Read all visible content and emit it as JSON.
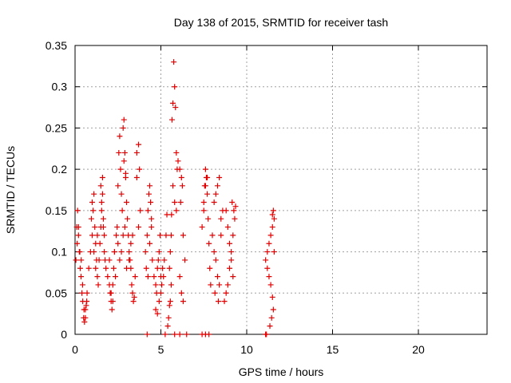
{
  "chart_data": {
    "type": "scatter",
    "title": "Day 138 of 2015, SRMTID for receiver tash",
    "xlabel": "GPS time / hours",
    "ylabel": "SRMTID / TECUs",
    "xlim": [
      0,
      24
    ],
    "ylim": [
      0,
      0.35
    ],
    "x_ticks": [
      0,
      5,
      10,
      15,
      20
    ],
    "x_tick_labels": [
      "0",
      "5",
      "10",
      "15",
      "20"
    ],
    "y_ticks": [
      0,
      0.05,
      0.1,
      0.15,
      0.2,
      0.25,
      0.3,
      0.35
    ],
    "y_tick_labels": [
      "0",
      "0.05",
      "0.1",
      "0.15",
      "0.2",
      "0.25",
      "0.3",
      "0.35"
    ],
    "grid": true,
    "marker": "+",
    "series_color": "#e00000",
    "grid_color": "#a0a0a0",
    "series": [
      {
        "name": "SRMTID",
        "x": [
          0.05,
          0.1,
          0.15,
          0.2,
          0.25,
          0.3,
          0.35,
          0.4,
          0.45,
          0.5,
          0.55,
          0.6,
          0.65,
          0.7,
          0.12,
          0.2,
          0.28,
          0.36,
          0.44,
          0.52,
          0.6,
          0.68,
          0.8,
          0.9,
          1.0,
          1.05,
          1.1,
          1.15,
          1.2,
          1.25,
          1.3,
          1.35,
          1.4,
          0.95,
          1.0,
          1.1,
          1.2,
          1.3,
          1.45,
          1.5,
          1.55,
          1.6,
          1.65,
          1.7,
          1.75,
          1.8,
          1.5,
          1.6,
          1.7,
          1.55,
          1.65,
          1.9,
          2.0,
          2.05,
          2.1,
          2.15,
          2.2,
          2.25,
          2.3,
          2.35,
          2.4,
          2.0,
          2.1,
          2.2,
          2.3,
          2.45,
          2.5,
          2.55,
          2.6,
          2.65,
          2.7,
          2.75,
          2.8,
          2.85,
          2.9,
          2.95,
          3.0,
          3.05,
          2.5,
          2.6,
          2.7,
          2.8,
          2.9,
          3.0,
          2.85,
          2.95,
          3.1,
          3.15,
          3.2,
          3.25,
          3.3,
          3.35,
          3.4,
          3.45,
          3.5,
          3.15,
          3.25,
          3.35,
          3.6,
          3.7,
          3.8,
          3.6,
          3.7,
          3.75,
          4.1,
          4.2,
          4.25,
          4.3,
          4.35,
          4.4,
          4.45,
          4.5,
          4.15,
          4.25,
          4.35,
          4.45,
          4.6,
          4.7,
          4.75,
          4.8,
          4.85,
          4.9,
          4.95,
          5.0,
          5.05,
          5.1,
          5.15,
          5.2,
          4.7,
          4.8,
          4.9,
          5.0,
          5.3,
          5.35,
          5.4,
          5.45,
          5.5,
          5.55,
          5.6,
          5.5,
          5.55,
          5.6,
          5.62,
          5.65,
          5.7,
          5.75,
          5.8,
          5.85,
          5.9,
          5.95,
          5.7,
          5.8,
          5.9,
          6.0,
          6.1,
          6.2,
          6.3,
          6.4,
          6.1,
          6.2,
          6.3,
          6.15,
          6.25,
          7.4,
          7.5,
          7.55,
          7.6,
          7.65,
          7.7,
          7.75,
          7.8,
          7.85,
          7.9,
          7.5,
          7.6,
          7.7,
          8.0,
          8.1,
          8.2,
          8.3,
          8.4,
          8.5,
          8.6,
          8.1,
          8.2,
          8.3,
          8.4,
          8.5,
          8.15,
          8.35,
          8.7,
          8.8,
          8.9,
          9.0,
          9.1,
          9.2,
          9.3,
          8.8,
          8.9,
          9.0,
          9.1,
          9.2,
          9.15,
          9.25,
          9.35,
          11.1,
          11.2,
          11.3,
          11.4,
          11.5,
          11.6,
          11.2,
          11.3,
          11.4,
          11.5,
          11.55,
          11.45,
          11.35,
          11.6,
          11.5,
          11.55,
          4.2,
          5.25,
          5.8,
          6.1,
          6.5,
          7.4,
          7.6,
          7.8,
          11.1,
          11.15
        ],
        "y": [
          0.09,
          0.13,
          0.15,
          0.12,
          0.1,
          0.08,
          0.07,
          0.05,
          0.04,
          0.02,
          0.015,
          0.03,
          0.035,
          0.05,
          0.11,
          0.13,
          0.1,
          0.09,
          0.06,
          0.03,
          0.02,
          0.04,
          0.08,
          0.1,
          0.12,
          0.15,
          0.17,
          0.13,
          0.11,
          0.09,
          0.07,
          0.06,
          0.09,
          0.14,
          0.16,
          0.1,
          0.08,
          0.12,
          0.11,
          0.13,
          0.16,
          0.19,
          0.14,
          0.12,
          0.09,
          0.08,
          0.18,
          0.17,
          0.1,
          0.15,
          0.13,
          0.07,
          0.06,
          0.05,
          0.04,
          0.03,
          0.06,
          0.08,
          0.1,
          0.07,
          0.12,
          0.09,
          0.05,
          0.04,
          0.1,
          0.13,
          0.18,
          0.22,
          0.24,
          0.2,
          0.17,
          0.15,
          0.25,
          0.26,
          0.22,
          0.19,
          0.16,
          0.14,
          0.11,
          0.09,
          0.1,
          0.12,
          0.13,
          0.08,
          0.21,
          0.195,
          0.12,
          0.1,
          0.09,
          0.08,
          0.06,
          0.05,
          0.04,
          0.045,
          0.07,
          0.09,
          0.11,
          0.12,
          0.22,
          0.23,
          0.15,
          0.19,
          0.13,
          0.2,
          0.1,
          0.12,
          0.15,
          0.17,
          0.18,
          0.16,
          0.14,
          0.09,
          0.08,
          0.07,
          0.11,
          0.13,
          0.07,
          0.06,
          0.05,
          0.08,
          0.09,
          0.1,
          0.12,
          0.07,
          0.06,
          0.08,
          0.07,
          0.09,
          0.03,
          0.025,
          0.04,
          0.05,
          0.12,
          0.145,
          0.01,
          0.02,
          0.035,
          0.04,
          0.06,
          0.08,
          0.1,
          0.12,
          0.145,
          0.26,
          0.28,
          0.33,
          0.3,
          0.275,
          0.22,
          0.2,
          0.18,
          0.16,
          0.15,
          0.21,
          0.2,
          0.19,
          0.12,
          0.09,
          0.07,
          0.05,
          0.04,
          0.16,
          0.18,
          0.13,
          0.15,
          0.18,
          0.2,
          0.19,
          0.17,
          0.14,
          0.11,
          0.08,
          0.06,
          0.16,
          0.18,
          0.19,
          0.12,
          0.1,
          0.09,
          0.07,
          0.06,
          0.14,
          0.15,
          0.16,
          0.17,
          0.18,
          0.19,
          0.12,
          0.05,
          0.04,
          0.04,
          0.05,
          0.06,
          0.08,
          0.1,
          0.12,
          0.14,
          0.15,
          0.13,
          0.11,
          0.09,
          0.07,
          0.16,
          0.15,
          0.155,
          0.09,
          0.1,
          0.11,
          0.12,
          0.13,
          0.14,
          0.08,
          0.07,
          0.06,
          0.045,
          0.03,
          0.02,
          0.01,
          0.1,
          0.145,
          0.15,
          0,
          0,
          0,
          0,
          0,
          0,
          0,
          0,
          0,
          0
        ]
      }
    ]
  }
}
